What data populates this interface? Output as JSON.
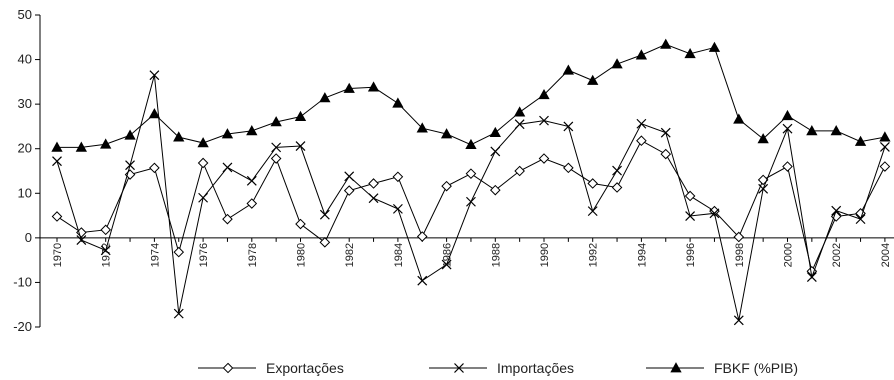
{
  "chart_data": {
    "type": "line",
    "x": [
      1970,
      1971,
      1972,
      1973,
      1974,
      1975,
      1976,
      1977,
      1978,
      1979,
      1980,
      1981,
      1982,
      1983,
      1984,
      1985,
      1986,
      1987,
      1988,
      1989,
      1990,
      1991,
      1992,
      1993,
      1994,
      1995,
      1996,
      1997,
      1998,
      1999,
      2000,
      2001,
      2002,
      2003,
      2004
    ],
    "x_tick_labels": [
      "1970",
      "1972",
      "1974",
      "1976",
      "1978",
      "1980",
      "1982",
      "1984",
      "1986",
      "1988",
      "1990",
      "1992",
      "1994",
      "1996",
      "1998",
      "2000",
      "2002",
      "2004"
    ],
    "ylim": [
      -20,
      50
    ],
    "y_ticks": [
      -20,
      -10,
      0,
      10,
      20,
      30,
      40,
      50
    ],
    "grid": false,
    "legend_position": "bottom",
    "series": [
      {
        "name": "Exportações",
        "marker": "diamond-open",
        "color": "#000000",
        "values": [
          4.8,
          1.2,
          1.8,
          14.2,
          15.7,
          -3.2,
          16.8,
          4.2,
          7.7,
          17.8,
          3.1,
          -1.0,
          10.6,
          12.2,
          13.7,
          0.3,
          11.6,
          14.4,
          10.7,
          15.0,
          17.8,
          15.7,
          12.2,
          11.3,
          21.8,
          18.8,
          9.4,
          6.0,
          0.2,
          13.0,
          16.0,
          -7.5,
          4.8,
          5.5,
          16.0
        ]
      },
      {
        "name": "Importações",
        "marker": "x",
        "color": "#000000",
        "values": [
          17.2,
          -0.5,
          -2.8,
          16.3,
          36.5,
          -17.0,
          9.0,
          15.8,
          12.8,
          20.3,
          20.6,
          5.2,
          13.8,
          8.9,
          6.5,
          -9.6,
          -6.0,
          8.1,
          19.4,
          25.5,
          26.3,
          25.0,
          6.0,
          15.1,
          25.6,
          23.6,
          4.9,
          5.5,
          -18.5,
          11.0,
          24.5,
          -8.8,
          6.1,
          4.2,
          20.4
        ]
      },
      {
        "name": "FBKF (%PIB)",
        "marker": "triangle",
        "color": "#000000",
        "values": [
          20.3,
          20.3,
          21.0,
          23.0,
          27.8,
          22.6,
          21.3,
          23.3,
          24.0,
          26.0,
          27.2,
          31.4,
          33.5,
          33.8,
          30.2,
          24.6,
          23.3,
          20.9,
          23.6,
          28.2,
          32.1,
          37.6,
          35.3,
          39.0,
          41.0,
          43.4,
          41.3,
          42.7,
          26.6,
          22.2,
          27.4,
          24.0,
          24.0,
          21.6,
          22.6
        ]
      }
    ]
  }
}
